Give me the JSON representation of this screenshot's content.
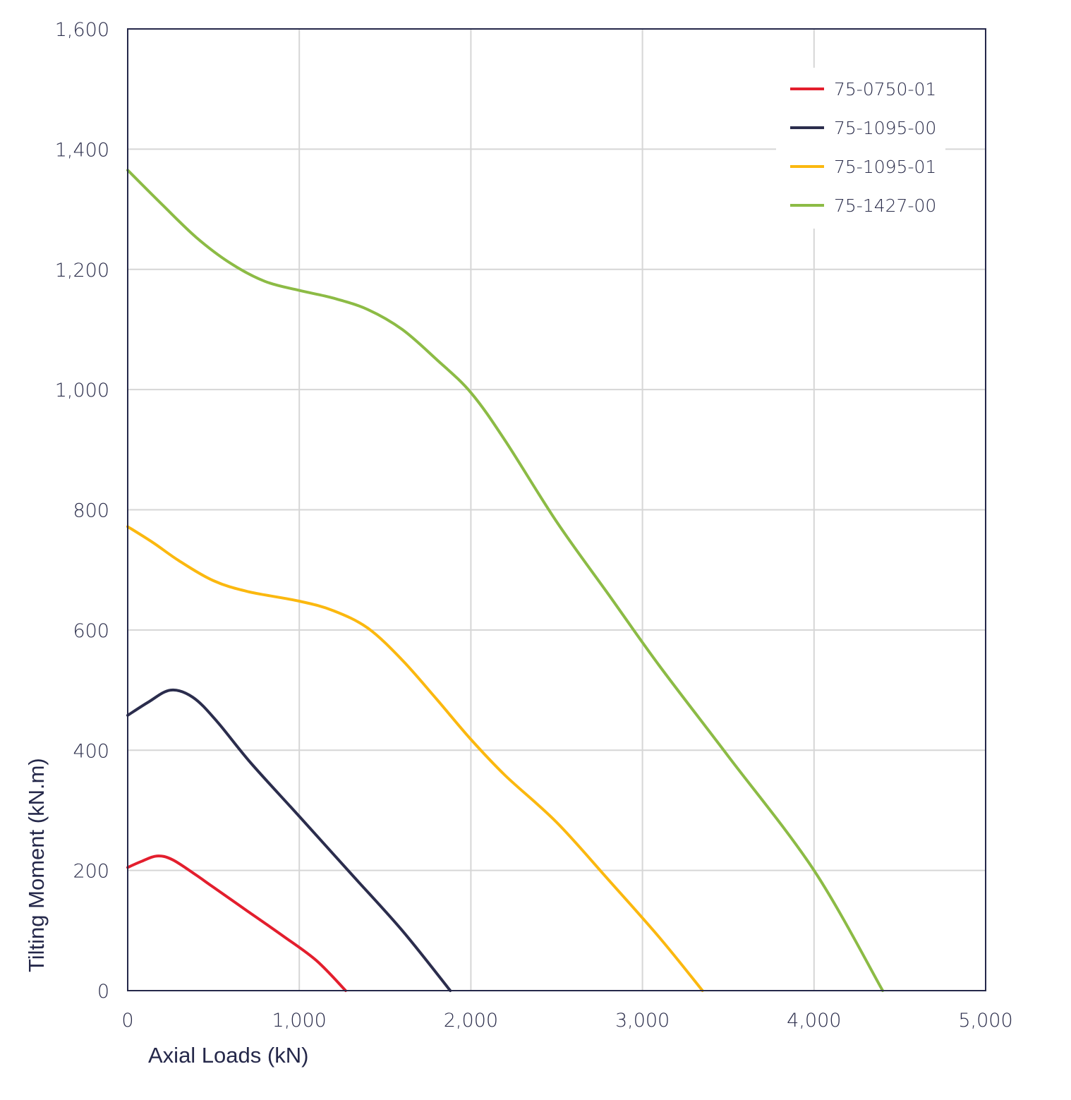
{
  "chart_data": {
    "type": "line",
    "xlabel": "Axial Loads (kN)",
    "ylabel": "Tilting Moment (kN.m)",
    "xlim": [
      0,
      5000
    ],
    "ylim": [
      0,
      1600
    ],
    "xticks": [
      0,
      1000,
      2000,
      3000,
      4000,
      5000
    ],
    "yticks": [
      0,
      200,
      400,
      600,
      800,
      1000,
      1200,
      1400,
      1600
    ],
    "xtick_labels": [
      "0",
      "1,000",
      "2,000",
      "3,000",
      "4,000",
      "5,000"
    ],
    "ytick_labels": [
      "0",
      "200",
      "400",
      "600",
      "800",
      "1,000",
      "1,200",
      "1,400",
      "1,600"
    ],
    "grid": true,
    "legend_position": "top-right",
    "series": [
      {
        "name": "75-0750-01",
        "color": "#e31e2d",
        "points": [
          [
            0,
            205
          ],
          [
            80,
            215
          ],
          [
            170,
            224
          ],
          [
            260,
            218
          ],
          [
            400,
            192
          ],
          [
            500,
            172
          ],
          [
            700,
            132
          ],
          [
            900,
            92
          ],
          [
            1100,
            50
          ],
          [
            1270,
            0
          ]
        ]
      },
      {
        "name": "75-1095-00",
        "color": "#2b2d4d",
        "points": [
          [
            0,
            458
          ],
          [
            120,
            480
          ],
          [
            250,
            500
          ],
          [
            380,
            488
          ],
          [
            520,
            448
          ],
          [
            720,
            378
          ],
          [
            1000,
            290
          ],
          [
            1300,
            195
          ],
          [
            1600,
            100
          ],
          [
            1880,
            0
          ]
        ]
      },
      {
        "name": "75-1095-01",
        "color": "#fbb80f",
        "points": [
          [
            0,
            772
          ],
          [
            150,
            745
          ],
          [
            300,
            715
          ],
          [
            500,
            682
          ],
          [
            700,
            664
          ],
          [
            1000,
            648
          ],
          [
            1200,
            632
          ],
          [
            1400,
            603
          ],
          [
            1600,
            550
          ],
          [
            1800,
            485
          ],
          [
            2000,
            418
          ],
          [
            2200,
            358
          ],
          [
            2500,
            280
          ],
          [
            2800,
            185
          ],
          [
            3100,
            88
          ],
          [
            3350,
            0
          ]
        ]
      },
      {
        "name": "75-1427-00",
        "color": "#8cbb45",
        "points": [
          [
            0,
            1365
          ],
          [
            200,
            1308
          ],
          [
            400,
            1253
          ],
          [
            600,
            1210
          ],
          [
            800,
            1180
          ],
          [
            1000,
            1165
          ],
          [
            1200,
            1152
          ],
          [
            1400,
            1133
          ],
          [
            1600,
            1100
          ],
          [
            1800,
            1050
          ],
          [
            2000,
            995
          ],
          [
            2200,
            915
          ],
          [
            2500,
            780
          ],
          [
            2800,
            660
          ],
          [
            3100,
            540
          ],
          [
            3500,
            390
          ],
          [
            4000,
            200
          ],
          [
            4400,
            0
          ]
        ]
      }
    ]
  }
}
